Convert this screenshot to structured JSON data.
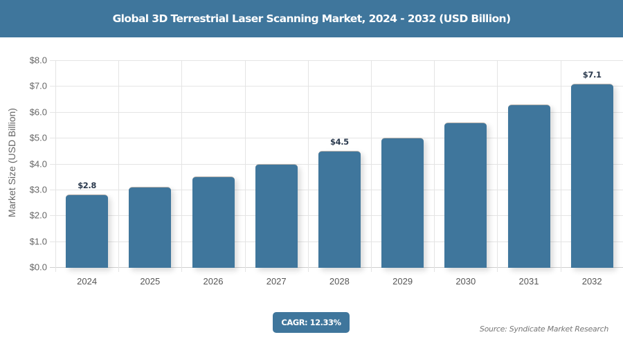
{
  "header": {
    "title": "Global 3D Terrestrial Laser Scanning Market, 2024 - 2032 (USD Billion)"
  },
  "colors": {
    "bar": "#3f769c",
    "header_bg": "#3f769c",
    "label": "#2b3a4e"
  },
  "chart_data": {
    "type": "bar",
    "title": "Global 3D Terrestrial Laser Scanning Market, 2024 - 2032 (USD Billion)",
    "xlabel": "",
    "ylabel": "Market Size (USD Billion)",
    "categories": [
      "2024",
      "2025",
      "2026",
      "2027",
      "2028",
      "2029",
      "2030",
      "2031",
      "2032"
    ],
    "values": [
      2.8,
      3.1,
      3.5,
      4.0,
      4.5,
      5.0,
      5.6,
      6.3,
      7.1
    ],
    "data_labels": {
      "0": "$2.8",
      "4": "$4.5",
      "8": "$7.1"
    },
    "ylim": [
      0,
      8
    ],
    "yticks": [
      "$0.0",
      "$1.0",
      "$2.0",
      "$3.0",
      "$4.0",
      "$5.0",
      "$6.0",
      "$7.0",
      "$8.0"
    ],
    "grid": true,
    "legend": null
  },
  "footer": {
    "cagr": "CAGR: 12.33%",
    "source": "Source: Syndicate Market Research"
  }
}
